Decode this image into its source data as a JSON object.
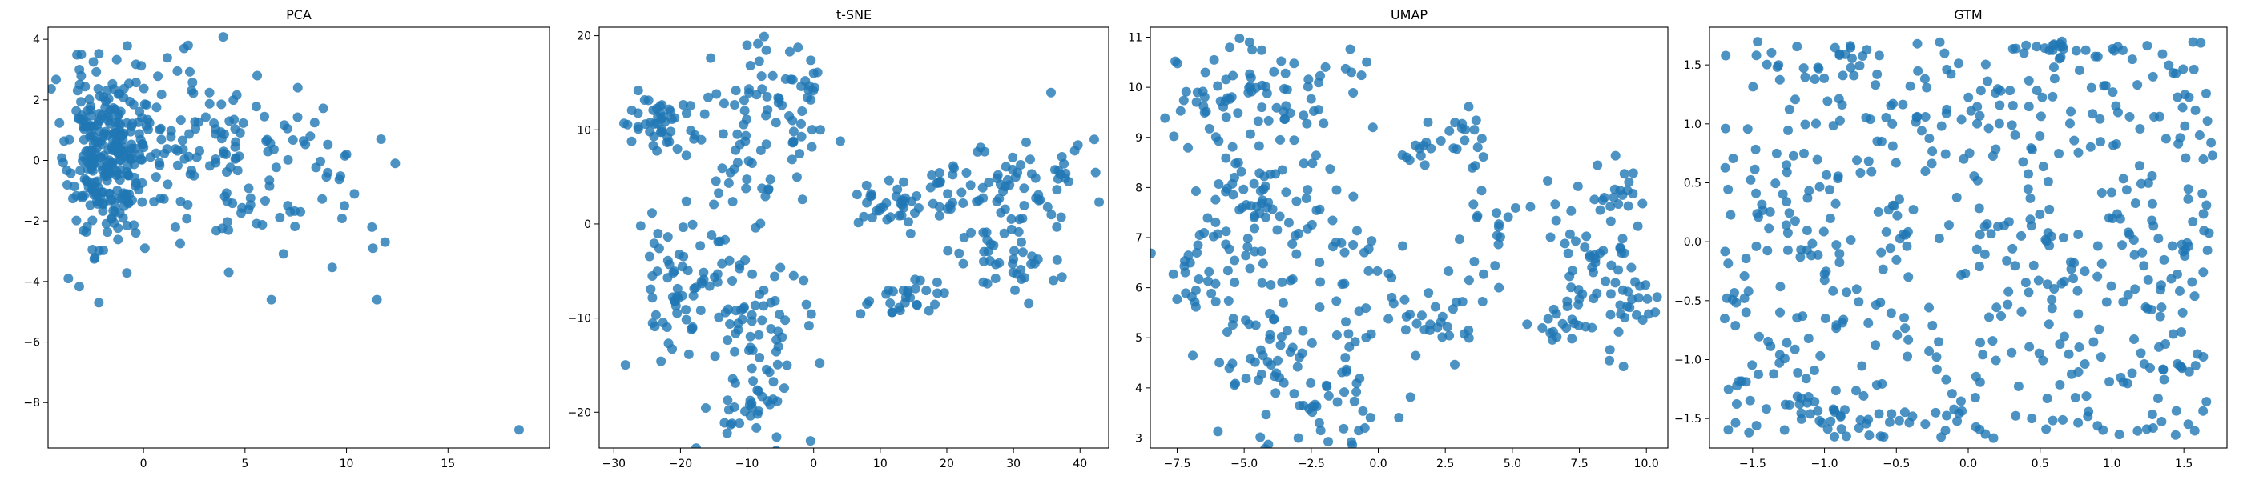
{
  "colors": {
    "marker": "#1f77b4",
    "marker_alpha": 0.8
  },
  "chart_data": [
    {
      "type": "scatter",
      "title": "PCA",
      "xlabel": "",
      "ylabel": "",
      "xlim": [
        -4.7,
        20.0
      ],
      "ylim": [
        -9.5,
        4.4
      ],
      "xticks": [
        0,
        5,
        10,
        15
      ],
      "yticks": [
        -8,
        -6,
        -4,
        -2,
        0,
        2,
        4
      ],
      "grid": false,
      "clusters": [
        {
          "cx": -1.9,
          "cy": 0.1,
          "sx": 0.9,
          "sy": 1.5,
          "n": 260
        },
        {
          "cx": 1.0,
          "cy": 0.5,
          "sx": 1.6,
          "sy": 1.3,
          "n": 70
        },
        {
          "cx": 4.5,
          "cy": 0.2,
          "sx": 1.8,
          "sy": 1.3,
          "n": 70
        },
        {
          "cx": 8.0,
          "cy": -0.4,
          "sx": 1.6,
          "sy": 1.2,
          "n": 22
        }
      ],
      "extra_points": [
        [
          -3.7,
          -3.9
        ],
        [
          -2.2,
          -4.7
        ],
        [
          6.3,
          -4.6
        ],
        [
          11.5,
          -4.6
        ],
        [
          11.3,
          -2.9
        ],
        [
          11.9,
          -2.7
        ],
        [
          12.4,
          -0.1
        ],
        [
          11.7,
          0.7
        ],
        [
          9.9,
          -1.5
        ],
        [
          10.0,
          0.2
        ],
        [
          2.2,
          3.8
        ],
        [
          2.0,
          3.7
        ],
        [
          18.5,
          -8.9
        ],
        [
          4.2,
          -3.7
        ],
        [
          5.6,
          2.8
        ],
        [
          7.6,
          2.4
        ]
      ],
      "seed": 11
    },
    {
      "type": "scatter",
      "title": "t-SNE",
      "xlabel": "",
      "ylabel": "",
      "xlim": [
        -32.2,
        44.3
      ],
      "ylim": [
        -23.8,
        20.9
      ],
      "xticks": [
        -30,
        -20,
        -10,
        0,
        10,
        20,
        30,
        40
      ],
      "yticks": [
        -20,
        -10,
        0,
        10,
        20
      ],
      "grid": false,
      "clusters": [
        {
          "cx": -24.0,
          "cy": 10.5,
          "sx": 2.8,
          "sy": 1.8,
          "n": 45
        },
        {
          "cx": -20.0,
          "cy": -6.0,
          "sx": 3.2,
          "sy": 4.0,
          "n": 55
        },
        {
          "cx": -10.0,
          "cy": 8.0,
          "sx": 4.0,
          "sy": 5.5,
          "n": 70
        },
        {
          "cx": -10.0,
          "cy": -10.0,
          "sx": 4.0,
          "sy": 4.0,
          "n": 60
        },
        {
          "cx": -10.0,
          "cy": -19.0,
          "sx": 2.8,
          "sy": 2.5,
          "n": 35
        },
        {
          "cx": -2.0,
          "cy": 13.0,
          "sx": 1.8,
          "sy": 3.5,
          "n": 25
        },
        {
          "cx": 12.0,
          "cy": 1.5,
          "sx": 2.5,
          "sy": 1.5,
          "n": 35
        },
        {
          "cx": 13.0,
          "cy": -8.0,
          "sx": 2.5,
          "sy": 1.0,
          "n": 25
        },
        {
          "cx": 20.0,
          "cy": 3.0,
          "sx": 2.2,
          "sy": 2.0,
          "n": 20
        },
        {
          "cx": 30.0,
          "cy": 4.0,
          "sx": 5.0,
          "sy": 3.0,
          "n": 70
        },
        {
          "cx": 28.0,
          "cy": -4.0,
          "sx": 3.5,
          "sy": 2.0,
          "n": 30
        }
      ],
      "extra_points": [
        [
          -4.0,
          -15.0
        ],
        [
          -3.0,
          -5.5
        ],
        [
          -1.5,
          -6.0
        ],
        [
          1.0,
          10.0
        ],
        [
          4.0,
          8.8
        ],
        [
          -10.0,
          19.0
        ],
        [
          0.0,
          16.0
        ],
        [
          8.0,
          -8.5
        ],
        [
          16.0,
          -6.0
        ],
        [
          36.0,
          -6.0
        ]
      ],
      "seed": 23
    },
    {
      "type": "scatter",
      "title": "UMAP",
      "xlabel": "",
      "ylabel": "",
      "xlim": [
        -8.5,
        10.8
      ],
      "ylim": [
        2.8,
        11.2
      ],
      "xticks": [
        -7.5,
        -5.0,
        -2.5,
        0.0,
        2.5,
        5.0,
        7.5,
        10.0
      ],
      "yticks": [
        3,
        4,
        5,
        6,
        7,
        8,
        9,
        10,
        11
      ],
      "grid": false,
      "clusters": [
        {
          "cx": -6.5,
          "cy": 9.8,
          "sx": 0.7,
          "sy": 0.4,
          "n": 25
        },
        {
          "cx": -4.5,
          "cy": 10.3,
          "sx": 0.6,
          "sy": 0.4,
          "n": 20
        },
        {
          "cx": -2.5,
          "cy": 9.8,
          "sx": 1.0,
          "sy": 0.6,
          "n": 30
        },
        {
          "cx": -5.0,
          "cy": 8.0,
          "sx": 0.9,
          "sy": 0.9,
          "n": 40
        },
        {
          "cx": -3.0,
          "cy": 7.0,
          "sx": 1.3,
          "sy": 1.0,
          "n": 55
        },
        {
          "cx": -6.5,
          "cy": 6.3,
          "sx": 0.8,
          "sy": 0.5,
          "n": 30
        },
        {
          "cx": -4.0,
          "cy": 4.5,
          "sx": 1.2,
          "sy": 0.7,
          "n": 50
        },
        {
          "cx": -1.5,
          "cy": 3.7,
          "sx": 0.8,
          "sy": 0.5,
          "n": 25
        },
        {
          "cx": -0.5,
          "cy": 5.5,
          "sx": 1.0,
          "sy": 0.9,
          "n": 25
        },
        {
          "cx": 2.5,
          "cy": 5.3,
          "sx": 1.0,
          "sy": 0.4,
          "n": 25
        },
        {
          "cx": 4.0,
          "cy": 6.8,
          "sx": 0.6,
          "sy": 0.6,
          "n": 18
        },
        {
          "cx": 3.3,
          "cy": 9.0,
          "sx": 0.5,
          "sy": 0.3,
          "n": 18
        },
        {
          "cx": 1.5,
          "cy": 8.7,
          "sx": 0.4,
          "sy": 0.2,
          "n": 10
        },
        {
          "cx": 7.8,
          "cy": 6.8,
          "sx": 0.9,
          "sy": 0.8,
          "n": 50
        },
        {
          "cx": 6.8,
          "cy": 5.3,
          "sx": 0.5,
          "sy": 0.2,
          "n": 15
        },
        {
          "cx": 9.0,
          "cy": 5.6,
          "sx": 0.6,
          "sy": 0.4,
          "n": 25
        },
        {
          "cx": 9.2,
          "cy": 7.8,
          "sx": 0.3,
          "sy": 0.4,
          "n": 15
        }
      ],
      "extra_points": [
        [
          -0.2,
          9.2
        ],
        [
          -1.0,
          10.3
        ],
        [
          0.5,
          6.2
        ],
        [
          -2.2,
          3.3
        ],
        [
          -0.5,
          3.2
        ],
        [
          -4.8,
          10.9
        ],
        [
          4.5,
          6.0
        ]
      ],
      "seed": 37
    },
    {
      "type": "scatter",
      "title": "GTM",
      "xlabel": "",
      "ylabel": "",
      "xlim": [
        -1.8,
        1.8
      ],
      "ylim": [
        -1.75,
        1.82
      ],
      "xticks": [
        -1.5,
        -1.0,
        -0.5,
        0.0,
        0.5,
        1.0,
        1.5
      ],
      "yticks": [
        -1.5,
        -1.0,
        -0.5,
        0.0,
        0.5,
        1.0,
        1.5
      ],
      "grid": false,
      "uniform": {
        "n": 560,
        "xrange": [
          -1.7,
          1.7
        ],
        "yrange": [
          -1.67,
          1.7
        ]
      },
      "clusters": [
        {
          "cx": 0.55,
          "cy": 1.63,
          "sx": 0.1,
          "sy": 0.03,
          "n": 12
        },
        {
          "cx": -1.0,
          "cy": -1.45,
          "sx": 0.12,
          "sy": 0.08,
          "n": 15
        },
        {
          "cx": -0.8,
          "cy": 1.62,
          "sx": 0.1,
          "sy": 0.03,
          "n": 8
        }
      ],
      "extra_points": [],
      "seed": 53
    }
  ]
}
